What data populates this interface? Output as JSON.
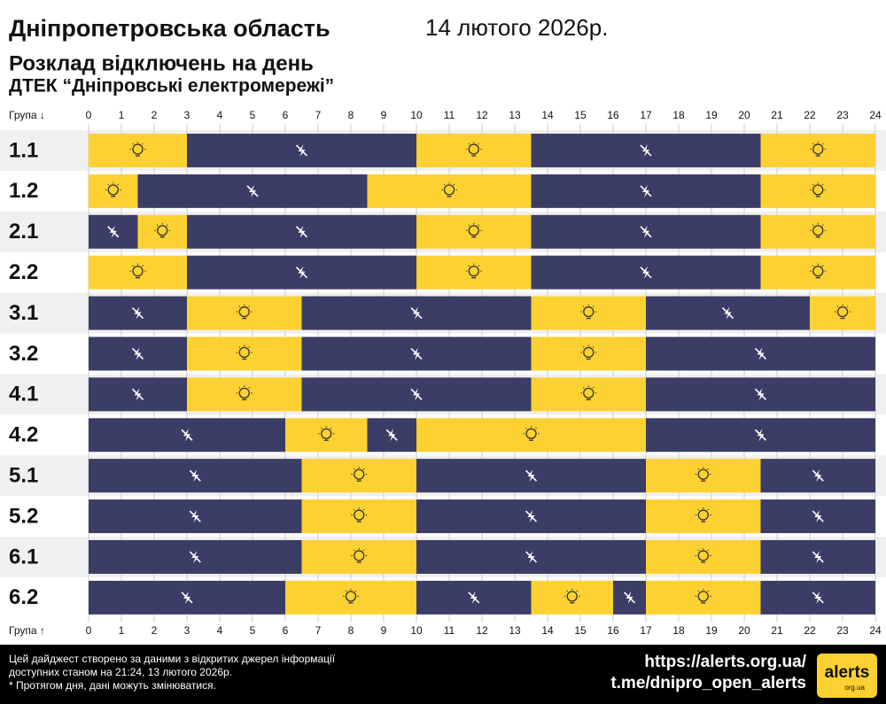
{
  "chart_data": {
    "type": "timeline",
    "title": "Дніпропетровська область",
    "date": "14 лютого 2026р.",
    "subtitle": "Розклад відключень на день",
    "provider": "ДТЕК “Дніпровські електромережі”",
    "y_label_top": "Група ↓",
    "y_label_bottom": "Група ↑",
    "xlim": [
      0,
      24
    ],
    "xticks": [
      0,
      1,
      2,
      3,
      4,
      5,
      6,
      7,
      8,
      9,
      10,
      11,
      12,
      13,
      14,
      15,
      16,
      17,
      18,
      19,
      20,
      21,
      22,
      23,
      24
    ],
    "on_color": "#fdd131",
    "off_color": "#3b3d66",
    "rows": [
      {
        "label": "1.1",
        "on": [
          [
            0,
            3
          ],
          [
            10,
            13.5
          ],
          [
            20.5,
            24
          ]
        ],
        "off": [
          [
            3,
            10
          ],
          [
            13.5,
            20.5
          ]
        ]
      },
      {
        "label": "1.2",
        "on": [
          [
            0,
            1.5
          ],
          [
            8.5,
            13.5
          ],
          [
            20.5,
            24
          ]
        ],
        "off": [
          [
            1.5,
            8.5
          ],
          [
            13.5,
            20.5
          ]
        ]
      },
      {
        "label": "2.1",
        "on": [
          [
            1.5,
            3
          ],
          [
            10,
            13.5
          ],
          [
            20.5,
            24
          ]
        ],
        "off": [
          [
            0,
            1.5
          ],
          [
            3,
            10
          ],
          [
            13.5,
            20.5
          ]
        ]
      },
      {
        "label": "2.2",
        "on": [
          [
            0,
            3
          ],
          [
            10,
            13.5
          ],
          [
            20.5,
            24
          ]
        ],
        "off": [
          [
            3,
            10
          ],
          [
            13.5,
            20.5
          ]
        ]
      },
      {
        "label": "3.1",
        "on": [
          [
            3,
            6.5
          ],
          [
            13.5,
            17
          ],
          [
            22,
            24
          ]
        ],
        "off": [
          [
            0,
            3
          ],
          [
            6.5,
            13.5
          ],
          [
            17,
            22
          ]
        ]
      },
      {
        "label": "3.2",
        "on": [
          [
            3,
            6.5
          ],
          [
            13.5,
            17
          ]
        ],
        "off": [
          [
            0,
            3
          ],
          [
            6.5,
            13.5
          ],
          [
            17,
            24
          ]
        ]
      },
      {
        "label": "4.1",
        "on": [
          [
            3,
            6.5
          ],
          [
            13.5,
            17
          ]
        ],
        "off": [
          [
            0,
            3
          ],
          [
            6.5,
            13.5
          ],
          [
            17,
            24
          ]
        ]
      },
      {
        "label": "4.2",
        "on": [
          [
            6,
            8.5
          ],
          [
            10,
            17
          ]
        ],
        "off": [
          [
            0,
            6
          ],
          [
            8.5,
            10
          ],
          [
            17,
            24
          ]
        ]
      },
      {
        "label": "5.1",
        "on": [
          [
            6.5,
            10
          ],
          [
            17,
            20.5
          ]
        ],
        "off": [
          [
            0,
            6.5
          ],
          [
            10,
            17
          ],
          [
            20.5,
            24
          ]
        ]
      },
      {
        "label": "5.2",
        "on": [
          [
            6.5,
            10
          ],
          [
            17,
            20.5
          ]
        ],
        "off": [
          [
            0,
            6.5
          ],
          [
            10,
            17
          ],
          [
            20.5,
            24
          ]
        ]
      },
      {
        "label": "6.1",
        "on": [
          [
            6.5,
            10
          ],
          [
            17,
            20.5
          ]
        ],
        "off": [
          [
            0,
            6.5
          ],
          [
            10,
            17
          ],
          [
            20.5,
            24
          ]
        ]
      },
      {
        "label": "6.2",
        "on": [
          [
            6,
            10
          ],
          [
            13.5,
            16
          ],
          [
            17,
            20.5
          ]
        ],
        "off": [
          [
            0,
            6
          ],
          [
            10,
            13.5
          ],
          [
            16,
            17
          ],
          [
            20.5,
            24
          ]
        ]
      }
    ],
    "footer_note": [
      "Цей дайджест створено за даними з відкритих джерел інформації",
      "доступних станом на 21:24, 13 лютого 2026р.",
      "* Протягом дня, дані можуть змінюватися."
    ],
    "links": [
      "https://alerts.org.ua/",
      "t.me/dnipro_open_alerts"
    ],
    "logo": "alerts",
    "logo_sub": "org.ua"
  }
}
